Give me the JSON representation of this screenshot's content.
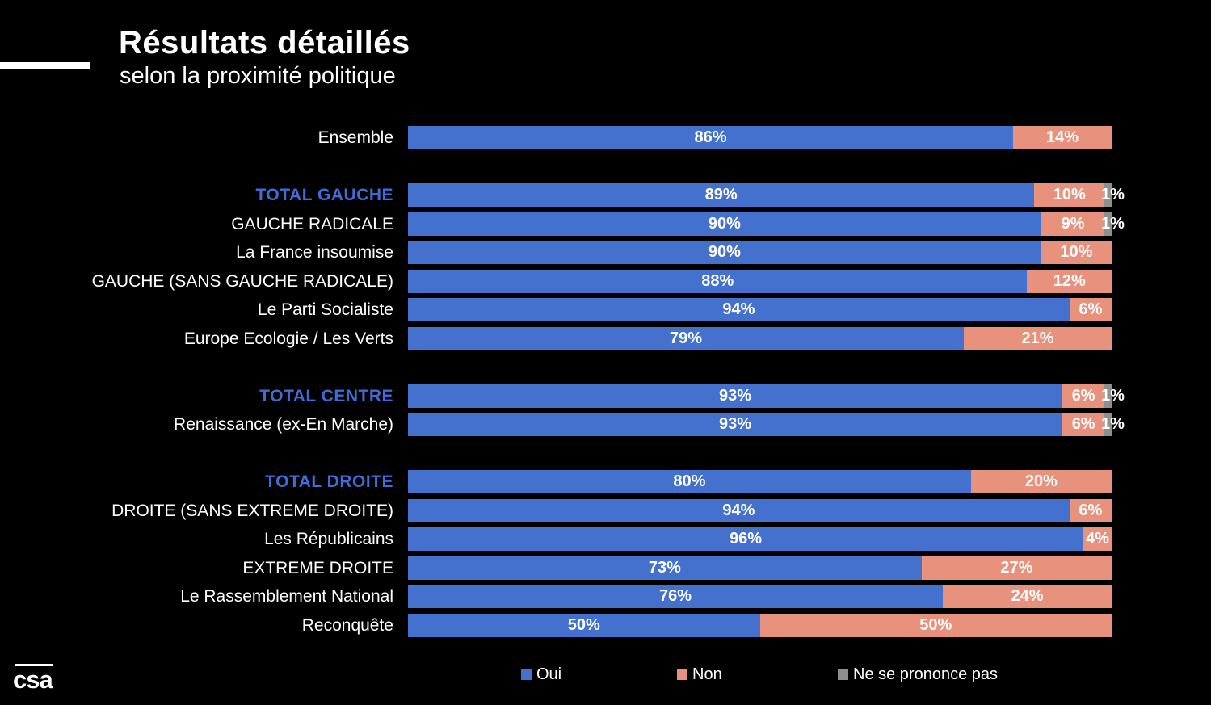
{
  "header": {
    "title": "Résultats détaillés",
    "subtitle": "selon la proximité politique"
  },
  "logo": {
    "text": "csa"
  },
  "legend": {
    "items": [
      {
        "label": "Oui"
      },
      {
        "label": "Non"
      },
      {
        "label": "Ne se prononce pas"
      }
    ]
  },
  "colors": {
    "oui": "#4471CE",
    "non": "#E8917D",
    "nsp": "#8F8F8F",
    "header_text": "#3E6CD8",
    "background": "#000000",
    "text": "#FFFFFF"
  },
  "chart_data": {
    "type": "bar",
    "orientation": "horizontal_stacked",
    "unit": "percent",
    "title": "Résultats détaillés",
    "subtitle": "selon la proximité politique",
    "legend_position": "bottom",
    "xlim": [
      0,
      100
    ],
    "series_names": [
      "Oui",
      "Non",
      "Ne se prononce pas"
    ],
    "rows": [
      {
        "label": "Ensemble",
        "header": false,
        "new_group": false,
        "oui": 86,
        "non": 14,
        "nsp": 0
      },
      {
        "label": "TOTAL GAUCHE",
        "header": true,
        "new_group": true,
        "oui": 89,
        "non": 10,
        "nsp": 1
      },
      {
        "label": "GAUCHE RADICALE",
        "header": false,
        "new_group": false,
        "oui": 90,
        "non": 9,
        "nsp": 1
      },
      {
        "label": "La France insoumise",
        "header": false,
        "new_group": false,
        "oui": 90,
        "non": 10,
        "nsp": 0
      },
      {
        "label": "GAUCHE (SANS GAUCHE RADICALE)",
        "header": false,
        "new_group": false,
        "oui": 88,
        "non": 12,
        "nsp": 0
      },
      {
        "label": "Le Parti Socialiste",
        "header": false,
        "new_group": false,
        "oui": 94,
        "non": 6,
        "nsp": 0
      },
      {
        "label": "Europe Ecologie / Les Verts",
        "header": false,
        "new_group": false,
        "oui": 79,
        "non": 21,
        "nsp": 0
      },
      {
        "label": "TOTAL CENTRE",
        "header": true,
        "new_group": true,
        "oui": 93,
        "non": 6,
        "nsp": 1
      },
      {
        "label": "Renaissance (ex-En Marche)",
        "header": false,
        "new_group": false,
        "oui": 93,
        "non": 6,
        "nsp": 1
      },
      {
        "label": "TOTAL DROITE",
        "header": true,
        "new_group": true,
        "oui": 80,
        "non": 20,
        "nsp": 0
      },
      {
        "label": "DROITE (SANS EXTREME DROITE)",
        "header": false,
        "new_group": false,
        "oui": 94,
        "non": 6,
        "nsp": 0
      },
      {
        "label": "Les Républicains",
        "header": false,
        "new_group": false,
        "oui": 96,
        "non": 4,
        "nsp": 0
      },
      {
        "label": "EXTREME DROITE",
        "header": false,
        "new_group": false,
        "oui": 73,
        "non": 27,
        "nsp": 0
      },
      {
        "label": "Le Rassemblement National",
        "header": false,
        "new_group": false,
        "oui": 76,
        "non": 24,
        "nsp": 0
      },
      {
        "label": "Reconquête",
        "header": false,
        "new_group": false,
        "oui": 50,
        "non": 50,
        "nsp": 0
      }
    ]
  }
}
